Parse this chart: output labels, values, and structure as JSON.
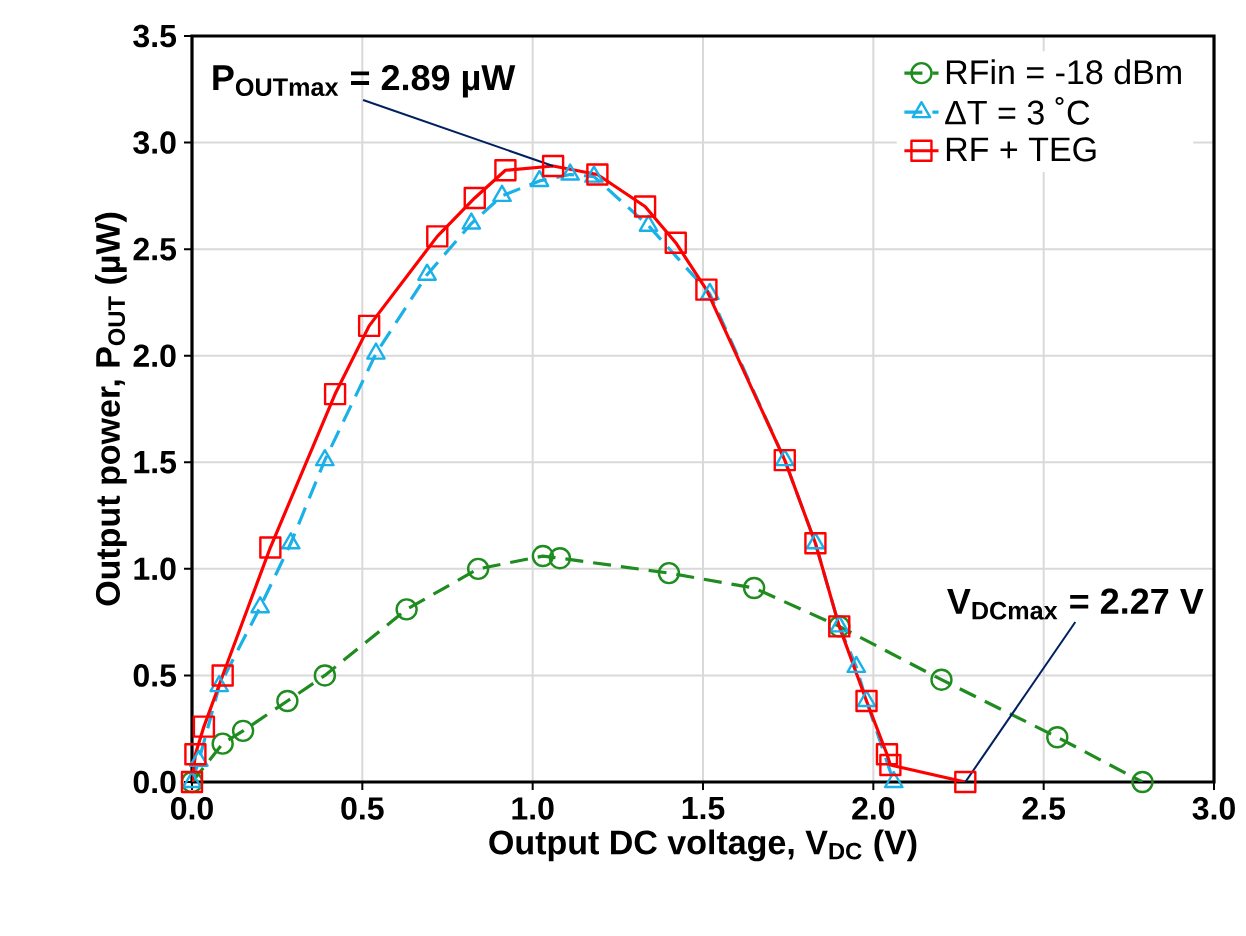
{
  "chart_data": {
    "type": "line",
    "xlabel": "Output DC voltage, V$_{DC}$ (V)",
    "ylabel": "Output power, P$_{OUT}$ (µW)",
    "xlim": [
      0,
      3
    ],
    "ylim": [
      0,
      3.5
    ],
    "xticks": [
      {
        "value": 0,
        "label": "0.0"
      },
      {
        "value": 0.5,
        "label": "0.5"
      },
      {
        "value": 1,
        "label": "1.0"
      },
      {
        "value": 1.5,
        "label": "1.5"
      },
      {
        "value": 2,
        "label": "2.0"
      },
      {
        "value": 2.5,
        "label": "2.5"
      },
      {
        "value": 3,
        "label": "3.0"
      }
    ],
    "yticks": [
      {
        "value": 0,
        "label": "0.0"
      },
      {
        "value": 0.5,
        "label": "0.5"
      },
      {
        "value": 1,
        "label": "1.0"
      },
      {
        "value": 1.5,
        "label": "1.5"
      },
      {
        "value": 2,
        "label": "2.0"
      },
      {
        "value": 2.5,
        "label": "2.5"
      },
      {
        "value": 3,
        "label": "3.0"
      },
      {
        "value": 3.5,
        "label": "3.5"
      }
    ],
    "grid": true,
    "legend": "top right",
    "series": [
      {
        "name": "RFin = -18 dBm",
        "color": "#1e8c1e",
        "marker": "circle",
        "line_style": "dashed",
        "x": [
          0,
          0.09,
          0.15,
          0.28,
          0.39,
          0.63,
          0.84,
          1.03,
          1.08,
          1.4,
          1.65,
          1.9,
          2.2,
          2.54,
          2.79
        ],
        "values": [
          0,
          0.18,
          0.24,
          0.38,
          0.5,
          0.81,
          1.0,
          1.06,
          1.05,
          0.98,
          0.91,
          0.73,
          0.48,
          0.21,
          0.0
        ]
      },
      {
        "name": "ΔT = 3 ˚C",
        "color": "#1ab0e8",
        "marker": "triangle",
        "line_style": "dashed",
        "x": [
          0,
          0.02,
          0.08,
          0.2,
          0.29,
          0.39,
          0.54,
          0.69,
          0.82,
          0.91,
          1.02,
          1.11,
          1.18,
          1.34,
          1.52,
          1.74,
          1.83,
          1.9,
          1.95,
          1.98,
          2.06
        ],
        "values": [
          0,
          0.1,
          0.45,
          0.82,
          1.12,
          1.51,
          2.01,
          2.38,
          2.62,
          2.75,
          2.82,
          2.85,
          2.84,
          2.61,
          2.29,
          1.51,
          1.12,
          0.73,
          0.54,
          0.38,
          0.0
        ]
      },
      {
        "name": "RF + TEG",
        "color": "#ff0000",
        "marker": "square",
        "line_style": "solid",
        "x": [
          0,
          0.01,
          0.035,
          0.09,
          0.23,
          0.42,
          0.52,
          0.72,
          0.83,
          0.92,
          1.06,
          1.19,
          1.33,
          1.42,
          1.51,
          1.74,
          1.83,
          1.9,
          1.98,
          2.04,
          2.05,
          2.27
        ],
        "values": [
          0,
          0.13,
          0.26,
          0.5,
          1.1,
          1.82,
          2.14,
          2.56,
          2.74,
          2.87,
          2.89,
          2.85,
          2.7,
          2.53,
          2.31,
          1.51,
          1.12,
          0.73,
          0.38,
          0.13,
          0.08,
          0.0
        ]
      }
    ],
    "annotations": [
      {
        "text": "P$_{OUTmax}$ = 2.89 µW",
        "x": 1.06,
        "y": 2.89
      },
      {
        "text": "V$_{DCmax}$ = 2.27 V",
        "x": 2.27,
        "y": 0
      }
    ]
  }
}
